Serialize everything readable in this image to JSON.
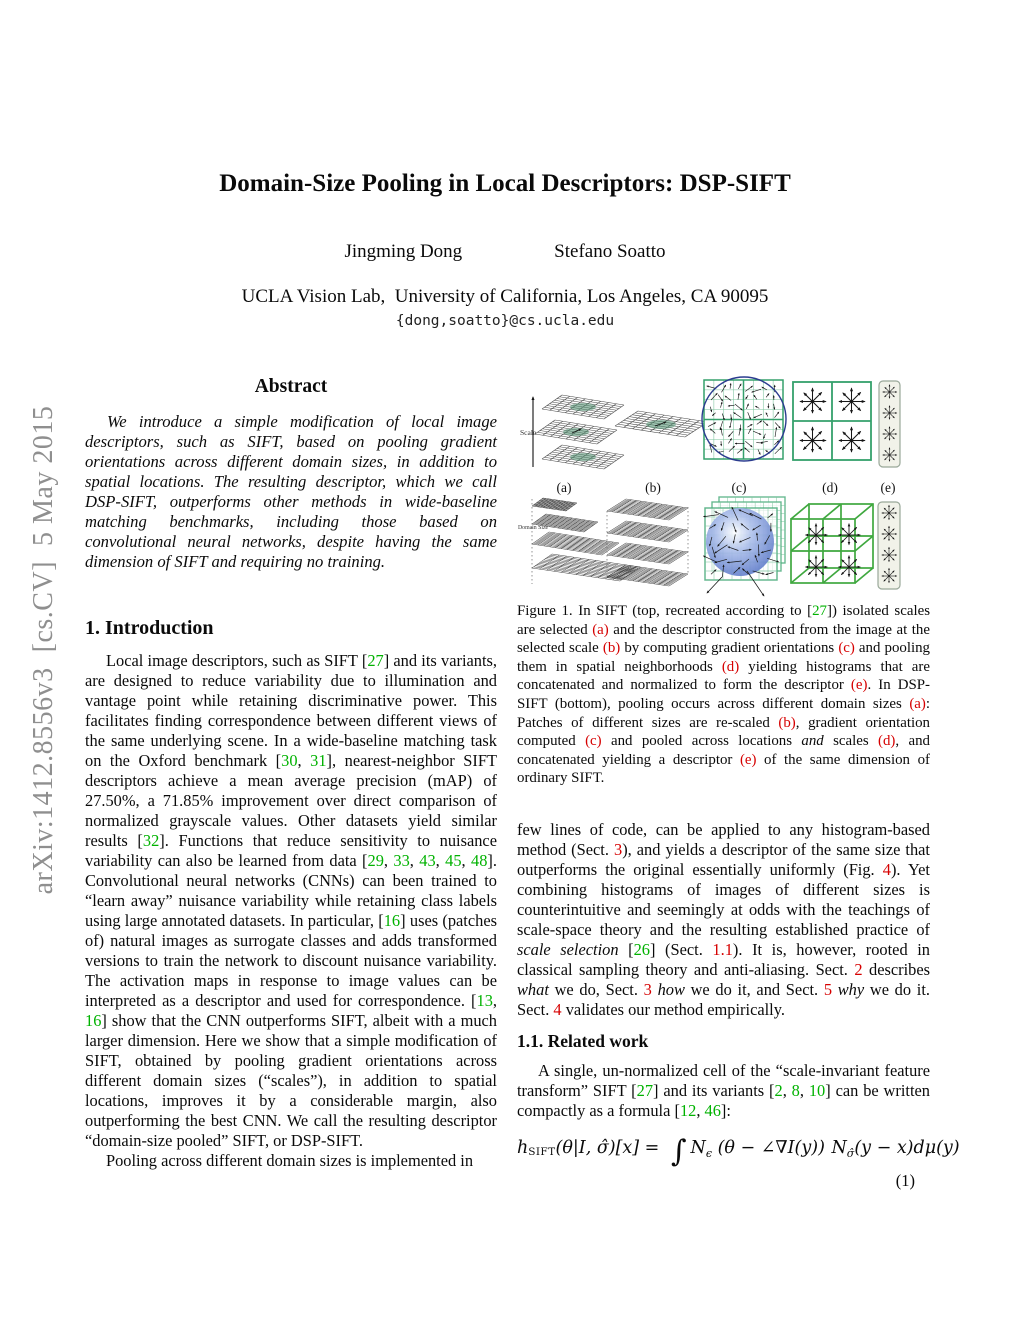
{
  "colors": {
    "citation_green": "#00b200",
    "internal_ref_red": "#d60000",
    "figure_green": "#35a06c",
    "figure_green_bright": "#3fa83f",
    "circle_navy": "#2b3c8f",
    "sphere_blue": "#5d7ac9",
    "sidebar_gray": "#8f8f8f"
  },
  "sidebar": {
    "text": "arXiv:1412.8556v3  [cs.CV]  5 May 2015"
  },
  "header": {
    "title": "Domain-Size Pooling in Local Descriptors: DSP-SIFT",
    "authors": [
      "Jingming Dong",
      "Stefano Soatto"
    ],
    "affiliation": "UCLA Vision Lab,  University of California, Los Angeles, CA 90095",
    "email": "{dong,soatto}@cs.ucla.edu"
  },
  "abstract": {
    "heading": "Abstract",
    "text": "We introduce a simple modification of local image descriptors, such as SIFT, based on pooling gradient orientations across different domain sizes, in addition to spatial locations. The resulting descriptor, which we call DSP-SIFT, outperforms other methods in wide-baseline matching benchmarks, including those based on convolutional neural networks, despite having the same dimension of SIFT and requiring no training."
  },
  "intro": {
    "heading": "1. Introduction",
    "p1_runs": [
      [
        "n",
        "Local image descriptors, such as SIFT ["
      ],
      [
        "g",
        "27"
      ],
      [
        "n",
        "] and its variants, are designed to reduce variability due to illumination and vantage point while retaining discriminative power. This facilitates finding correspondence between different views of the same underlying scene. In a wide-baseline matching task on the Oxford benchmark ["
      ],
      [
        "g",
        "30"
      ],
      [
        "n",
        ", "
      ],
      [
        "g",
        "31"
      ],
      [
        "n",
        "], nearest-neighbor SIFT descriptors achieve a mean average precision (mAP) of 27.50%, a 71.85% improvement over direct comparison of normalized grayscale values. Other datasets yield similar results ["
      ],
      [
        "g",
        "32"
      ],
      [
        "n",
        "]. Functions that reduce sensitivity to nuisance variability can also be learned from data ["
      ],
      [
        "g",
        "29"
      ],
      [
        "n",
        ", "
      ],
      [
        "g",
        "33"
      ],
      [
        "n",
        ", "
      ],
      [
        "g",
        "43"
      ],
      [
        "n",
        ", "
      ],
      [
        "g",
        "45"
      ],
      [
        "n",
        ", "
      ],
      [
        "g",
        "48"
      ],
      [
        "n",
        "]. Convolutional neural networks (CNNs) can been trained to “learn away” nuisance variability while retaining class labels using large annotated datasets. In particular, ["
      ],
      [
        "g",
        "16"
      ],
      [
        "n",
        "] uses (patches of) natural images as surrogate classes and adds transformed versions to train the network to discount nuisance variability. The activation maps in response to image values can be interpreted as a descriptor and used for correspondence. ["
      ],
      [
        "g",
        "13"
      ],
      [
        "n",
        ", "
      ],
      [
        "g",
        "16"
      ],
      [
        "n",
        "] show that the CNN outperforms SIFT, albeit with a much larger dimension. Here we show that a simple modification of SIFT, obtained by pooling gradient orientations across different domain sizes (“scales”), in addition to spatial locations, improves it by a considerable margin, also outperforming the best CNN. We call the resulting descriptor “domain-size pooled” SIFT, or DSP-SIFT."
      ]
    ],
    "p2_runs": [
      [
        "n",
        "Pooling across different domain sizes is implemented in"
      ]
    ]
  },
  "figure1": {
    "labels": [
      "(a)",
      "(b)",
      "(c)",
      "(d)",
      "(e)"
    ],
    "scale_label": "Scale",
    "domain_label": "Domain Size",
    "caption_runs": [
      [
        "n",
        "Figure 1. In SIFT (top, recreated according to ["
      ],
      [
        "g",
        "27"
      ],
      [
        "n",
        "]) isolated scales are selected "
      ],
      [
        "r",
        "(a)"
      ],
      [
        "n",
        " and the descriptor constructed from the image at the selected scale "
      ],
      [
        "r",
        "(b)"
      ],
      [
        "n",
        " by computing gradient orientations "
      ],
      [
        "r",
        "(c)"
      ],
      [
        "n",
        " and pooling them in spatial neighborhoods "
      ],
      [
        "r",
        "(d)"
      ],
      [
        "n",
        " yielding histograms that are concatenated and normalized to form the descriptor "
      ],
      [
        "r",
        "(e)"
      ],
      [
        "n",
        ". In DSP-SIFT (bottom), pooling occurs across different domain sizes "
      ],
      [
        "r",
        "(a)"
      ],
      [
        "n",
        ": Patches of different sizes are re-scaled "
      ],
      [
        "r",
        "(b)"
      ],
      [
        "n",
        ", gradient orientation computed "
      ],
      [
        "r",
        "(c)"
      ],
      [
        "n",
        " and pooled across locations "
      ],
      [
        "i",
        "and"
      ],
      [
        "n",
        " scales "
      ],
      [
        "r",
        "(d)"
      ],
      [
        "n",
        ", and concatenated yielding a descriptor "
      ],
      [
        "r",
        "(e)"
      ],
      [
        "n",
        " of the same dimension of ordinary SIFT."
      ]
    ]
  },
  "continuation": {
    "p_runs": [
      [
        "n",
        "few lines of code, can be applied to any histogram-based method (Sect. "
      ],
      [
        "r",
        "3"
      ],
      [
        "n",
        "), and yields a descriptor of the same size that outperforms the original essentially uniformly (Fig. "
      ],
      [
        "r",
        "4"
      ],
      [
        "n",
        "). Yet combining histograms of images of different sizes is counterintuitive and seemingly at odds with the teachings of scale-space theory and the resulting established practice of "
      ],
      [
        "i",
        "scale selection"
      ],
      [
        "n",
        " ["
      ],
      [
        "g",
        "26"
      ],
      [
        "n",
        "] (Sect. "
      ],
      [
        "r",
        "1.1"
      ],
      [
        "n",
        "). It is, however, rooted in classical sampling theory and anti-aliasing. Sect. "
      ],
      [
        "r",
        "2"
      ],
      [
        "n",
        " describes "
      ],
      [
        "i",
        "what"
      ],
      [
        "n",
        " we do, Sect. "
      ],
      [
        "r",
        "3"
      ],
      [
        "n",
        " "
      ],
      [
        "i",
        "how"
      ],
      [
        "n",
        " we do it, and Sect. "
      ],
      [
        "r",
        "5"
      ],
      [
        "n",
        " "
      ],
      [
        "i",
        "why"
      ],
      [
        "n",
        " we do it. Sect. "
      ],
      [
        "r",
        "4"
      ],
      [
        "n",
        " validates our method empirically."
      ]
    ]
  },
  "related": {
    "heading": "1.1. Related work",
    "p_runs": [
      [
        "n",
        "A single, un-normalized cell of the “scale-invariant feature transform” SIFT ["
      ],
      [
        "g",
        "27"
      ],
      [
        "n",
        "] and its variants ["
      ],
      [
        "g",
        "2"
      ],
      [
        "n",
        ", "
      ],
      [
        "g",
        "8"
      ],
      [
        "n",
        ", "
      ],
      [
        "g",
        "10"
      ],
      [
        "n",
        "] can be written compactly as a formula ["
      ],
      [
        "g",
        "12"
      ],
      [
        "n",
        ", "
      ],
      [
        "g",
        "46"
      ],
      [
        "n",
        "]:"
      ]
    ],
    "equation_runs": [
      [
        "v",
        "h"
      ],
      [
        "sc",
        "SIFT"
      ],
      [
        "v",
        "(θ|I, σ̂)[x] = "
      ],
      [
        "big",
        "∫"
      ],
      [
        "cal",
        "N"
      ],
      [
        "sub",
        "ϵ"
      ],
      [
        "v",
        " (θ − ∠∇I(y)) "
      ],
      [
        "cal",
        "N"
      ],
      [
        "sub",
        "σ̂"
      ],
      [
        "v",
        "(y − x)dμ(y)"
      ]
    ],
    "eq_number": "(1)"
  }
}
